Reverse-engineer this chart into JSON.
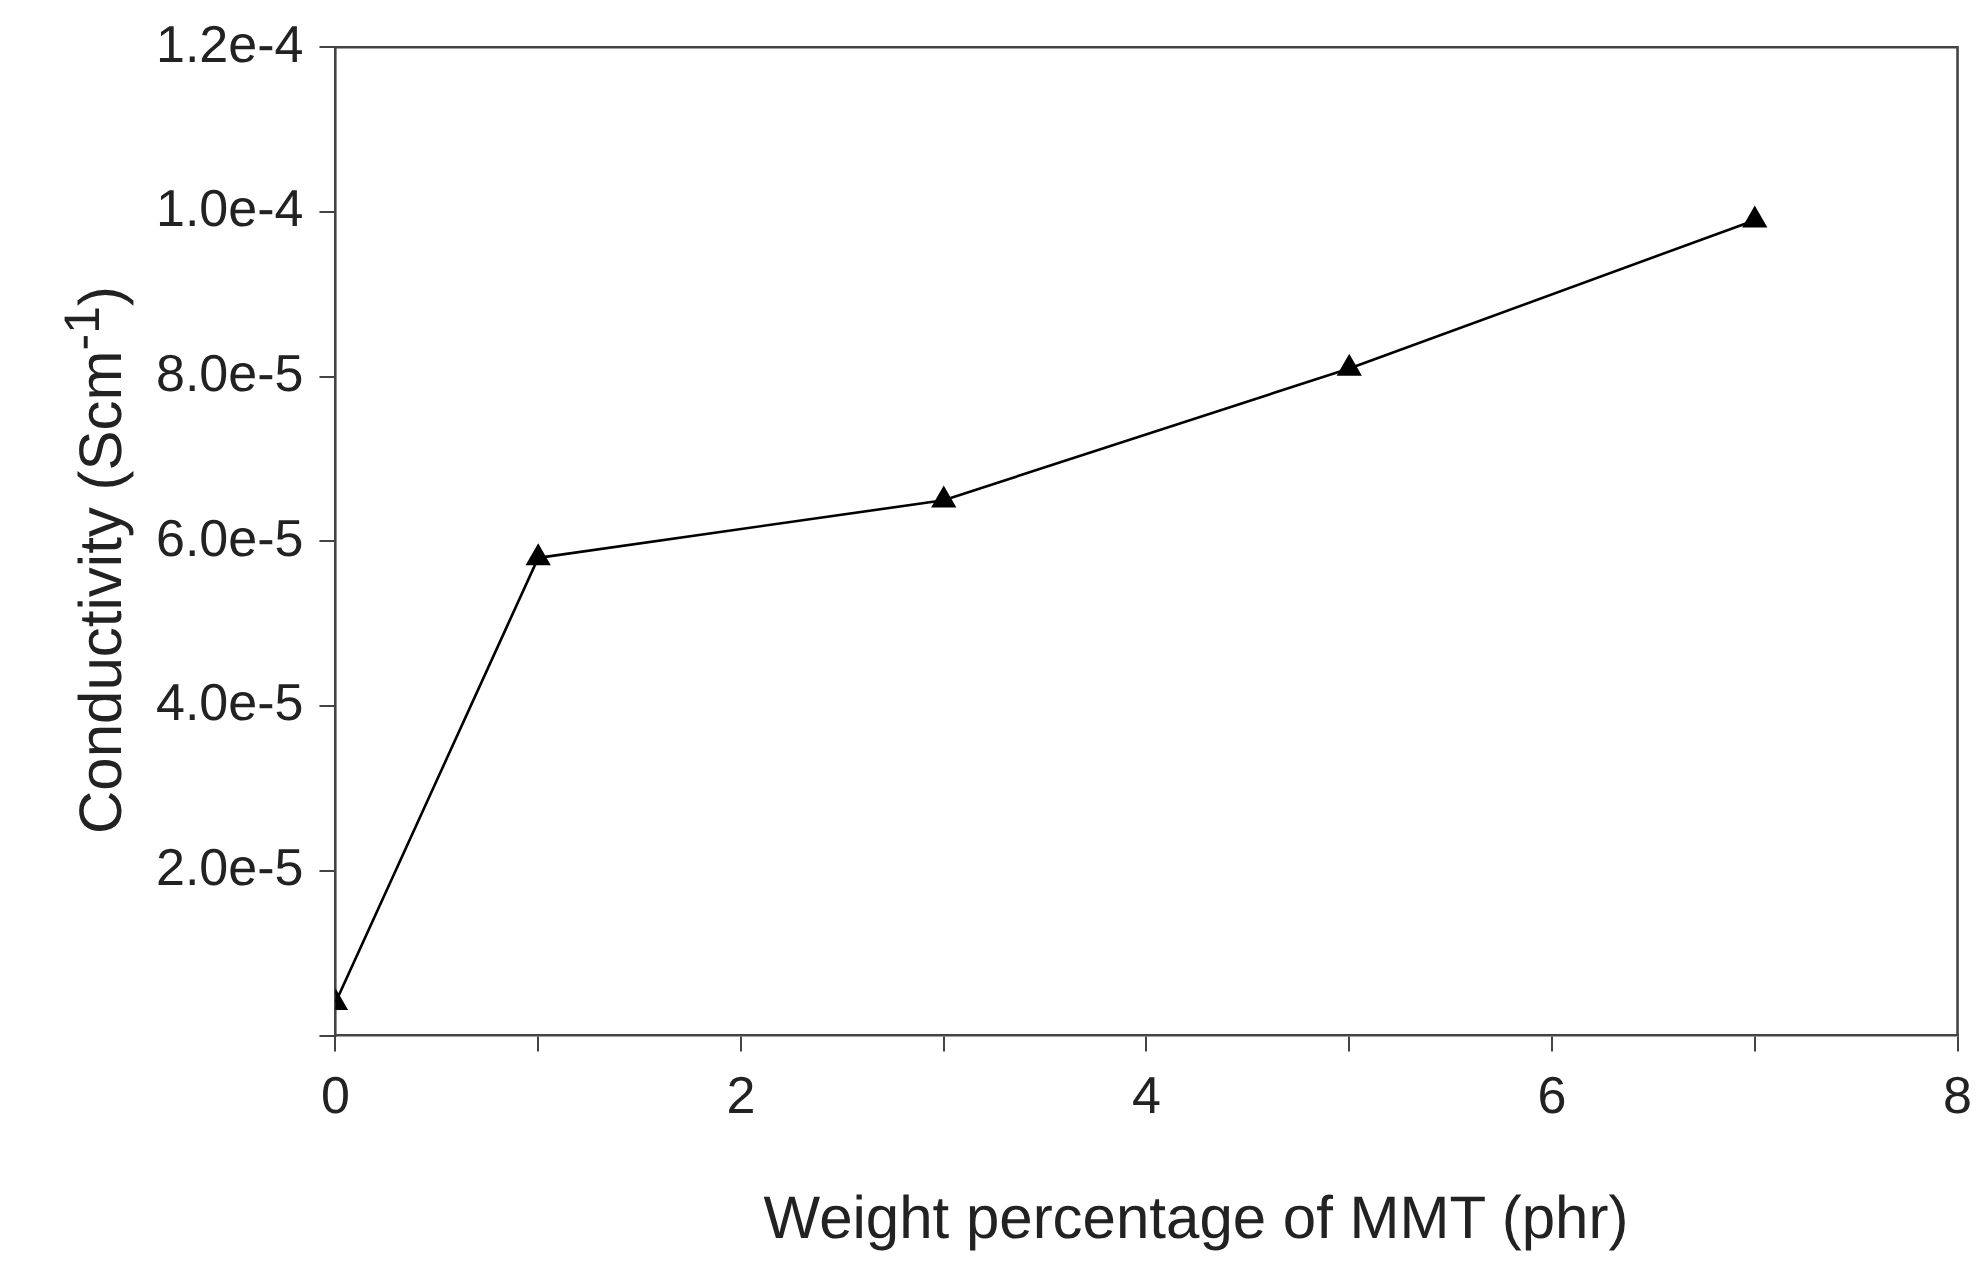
{
  "chart_data": {
    "type": "line",
    "xlabel": "Weight percentage of MMT (phr)",
    "ylabel": "Conductivity (Scm$^{-1}$)",
    "x": [
      0,
      1,
      3,
      5,
      7
    ],
    "series": [
      {
        "color": "#000000",
        "values": [
          4e-06,
          5.8e-05,
          6.5e-05,
          8.1e-05,
          9.9e-05
        ]
      }
    ],
    "xlim": [
      0,
      8
    ],
    "xticks": [
      0,
      {
        "value": 1,
        "label": null
      },
      2,
      {
        "value": 3,
        "label": null
      },
      4,
      {
        "value": 5,
        "label": null
      },
      6,
      {
        "value": 7,
        "label": null
      },
      8
    ],
    "ylim": [
      0,
      0.00012
    ],
    "yticks": [
      {
        "value": 0,
        "label": null
      },
      {
        "value": 2e-05,
        "label": "2.0e-5"
      },
      {
        "value": 4e-05,
        "label": "4.0e-5"
      },
      {
        "value": 6e-05,
        "label": "6.0e-5"
      },
      {
        "value": 8e-05,
        "label": "8.0e-5"
      },
      {
        "value": 0.0001,
        "label": "1.0e-4"
      },
      {
        "value": 0.00012,
        "label": "1.2e-4"
      }
    ],
    "grid": false,
    "legend": false,
    "marker": "triangle",
    "line_style": "solid"
  }
}
